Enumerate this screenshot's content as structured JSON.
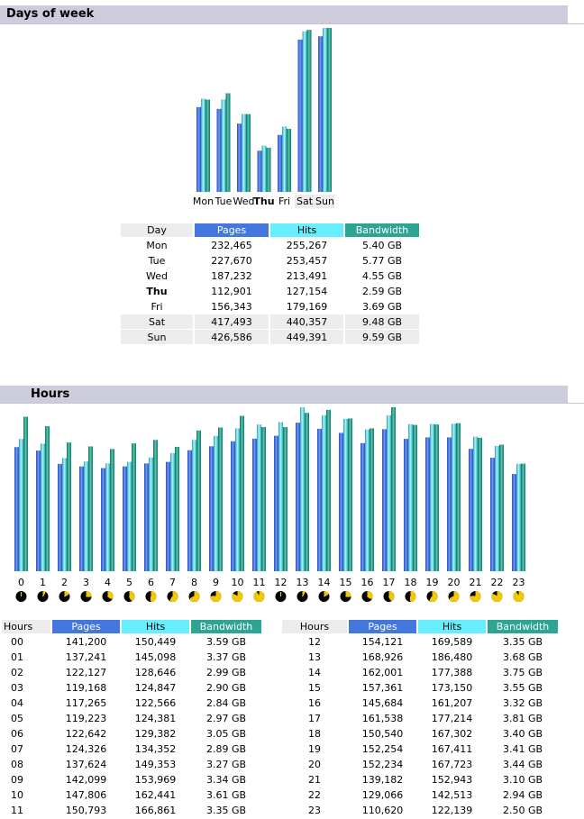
{
  "sections": {
    "days_title": "Days of week",
    "hours_title": "Hours"
  },
  "colors": {
    "pages": "#4477dd",
    "hits": "#66eeff",
    "bandwidth": "#2ea495",
    "header_bg": "#ccccdd"
  },
  "days_table": {
    "headers": [
      "Day",
      "Pages",
      "Hits",
      "Bandwidth"
    ],
    "rows": [
      {
        "day": "Mon",
        "pages": "232,465",
        "hits": "255,267",
        "bw": "5.40 GB"
      },
      {
        "day": "Tue",
        "pages": "227,670",
        "hits": "253,457",
        "bw": "5.77 GB"
      },
      {
        "day": "Wed",
        "pages": "187,232",
        "hits": "213,491",
        "bw": "4.55 GB"
      },
      {
        "day": "Thu",
        "pages": "112,901",
        "hits": "127,154",
        "bw": "2.59 GB"
      },
      {
        "day": "Fri",
        "pages": "156,343",
        "hits": "179,169",
        "bw": "3.69 GB"
      },
      {
        "day": "Sat",
        "pages": "417,493",
        "hits": "440,357",
        "bw": "9.48 GB"
      },
      {
        "day": "Sun",
        "pages": "426,586",
        "hits": "449,391",
        "bw": "9.59 GB"
      }
    ]
  },
  "hours_table": {
    "headers": [
      "Hours",
      "Pages",
      "Hits",
      "Bandwidth"
    ],
    "rows": [
      {
        "hour": "00",
        "pages": "141,200",
        "hits": "150,449",
        "bw": "3.59 GB"
      },
      {
        "hour": "01",
        "pages": "137,241",
        "hits": "145,098",
        "bw": "3.37 GB"
      },
      {
        "hour": "02",
        "pages": "122,127",
        "hits": "128,646",
        "bw": "2.99 GB"
      },
      {
        "hour": "03",
        "pages": "119,168",
        "hits": "124,847",
        "bw": "2.90 GB"
      },
      {
        "hour": "04",
        "pages": "117,265",
        "hits": "122,566",
        "bw": "2.84 GB"
      },
      {
        "hour": "05",
        "pages": "119,223",
        "hits": "124,381",
        "bw": "2.97 GB"
      },
      {
        "hour": "06",
        "pages": "122,642",
        "hits": "129,382",
        "bw": "3.05 GB"
      },
      {
        "hour": "07",
        "pages": "124,326",
        "hits": "134,352",
        "bw": "2.89 GB"
      },
      {
        "hour": "08",
        "pages": "137,624",
        "hits": "149,353",
        "bw": "3.27 GB"
      },
      {
        "hour": "09",
        "pages": "142,099",
        "hits": "153,969",
        "bw": "3.34 GB"
      },
      {
        "hour": "10",
        "pages": "147,806",
        "hits": "162,441",
        "bw": "3.61 GB"
      },
      {
        "hour": "11",
        "pages": "150,793",
        "hits": "166,861",
        "bw": "3.35 GB"
      },
      {
        "hour": "12",
        "pages": "154,121",
        "hits": "169,589",
        "bw": "3.35 GB"
      },
      {
        "hour": "13",
        "pages": "168,926",
        "hits": "186,480",
        "bw": "3.68 GB"
      },
      {
        "hour": "14",
        "pages": "162,001",
        "hits": "177,388",
        "bw": "3.75 GB"
      },
      {
        "hour": "15",
        "pages": "157,361",
        "hits": "173,150",
        "bw": "3.55 GB"
      },
      {
        "hour": "16",
        "pages": "145,684",
        "hits": "161,207",
        "bw": "3.32 GB"
      },
      {
        "hour": "17",
        "pages": "161,538",
        "hits": "177,214",
        "bw": "3.81 GB"
      },
      {
        "hour": "18",
        "pages": "150,540",
        "hits": "167,302",
        "bw": "3.40 GB"
      },
      {
        "hour": "19",
        "pages": "152,254",
        "hits": "167,411",
        "bw": "3.41 GB"
      },
      {
        "hour": "20",
        "pages": "152,234",
        "hits": "167,723",
        "bw": "3.44 GB"
      },
      {
        "hour": "21",
        "pages": "139,182",
        "hits": "152,943",
        "bw": "3.10 GB"
      },
      {
        "hour": "22",
        "pages": "129,066",
        "hits": "142,513",
        "bw": "2.94 GB"
      },
      {
        "hour": "23",
        "pages": "110,620",
        "hits": "122,139",
        "bw": "2.50 GB"
      }
    ]
  },
  "chart_data": [
    {
      "type": "bar",
      "categories": [
        "Mon",
        "Tue",
        "Wed",
        "Thu",
        "Fri",
        "Sat",
        "Sun"
      ],
      "highlight_categories": [
        "Sat",
        "Sun"
      ],
      "bold_categories": [
        "Thu"
      ],
      "series": [
        {
          "name": "Pages",
          "values": [
            232465,
            227670,
            187232,
            112901,
            156343,
            417493,
            426586
          ]
        },
        {
          "name": "Hits",
          "values": [
            255267,
            253457,
            213491,
            127154,
            179169,
            440357,
            449391
          ]
        },
        {
          "name": "Bandwidth",
          "values": [
            5.4,
            5.77,
            4.55,
            2.59,
            3.69,
            9.48,
            9.59
          ]
        }
      ]
    },
    {
      "type": "bar",
      "categories": [
        "0",
        "1",
        "2",
        "3",
        "4",
        "5",
        "6",
        "7",
        "8",
        "9",
        "10",
        "11",
        "12",
        "13",
        "14",
        "15",
        "16",
        "17",
        "18",
        "19",
        "20",
        "21",
        "22",
        "23"
      ],
      "series": [
        {
          "name": "Pages",
          "values": [
            141200,
            137241,
            122127,
            119168,
            117265,
            119223,
            122642,
            124326,
            137624,
            142099,
            147806,
            150793,
            154121,
            168926,
            162001,
            157361,
            145684,
            161538,
            150540,
            152254,
            152234,
            139182,
            129066,
            110620
          ]
        },
        {
          "name": "Hits",
          "values": [
            150449,
            145098,
            128646,
            124847,
            122566,
            124381,
            129382,
            134352,
            149353,
            153969,
            162441,
            166861,
            169589,
            186480,
            177388,
            173150,
            161207,
            177214,
            167302,
            167411,
            167723,
            152943,
            142513,
            122139
          ]
        },
        {
          "name": "Bandwidth",
          "values": [
            3.59,
            3.37,
            2.99,
            2.9,
            2.84,
            2.97,
            3.05,
            2.89,
            3.27,
            3.34,
            3.61,
            3.35,
            3.35,
            3.68,
            3.75,
            3.55,
            3.32,
            3.81,
            3.4,
            3.41,
            3.44,
            3.1,
            2.94,
            2.5
          ]
        }
      ]
    }
  ]
}
